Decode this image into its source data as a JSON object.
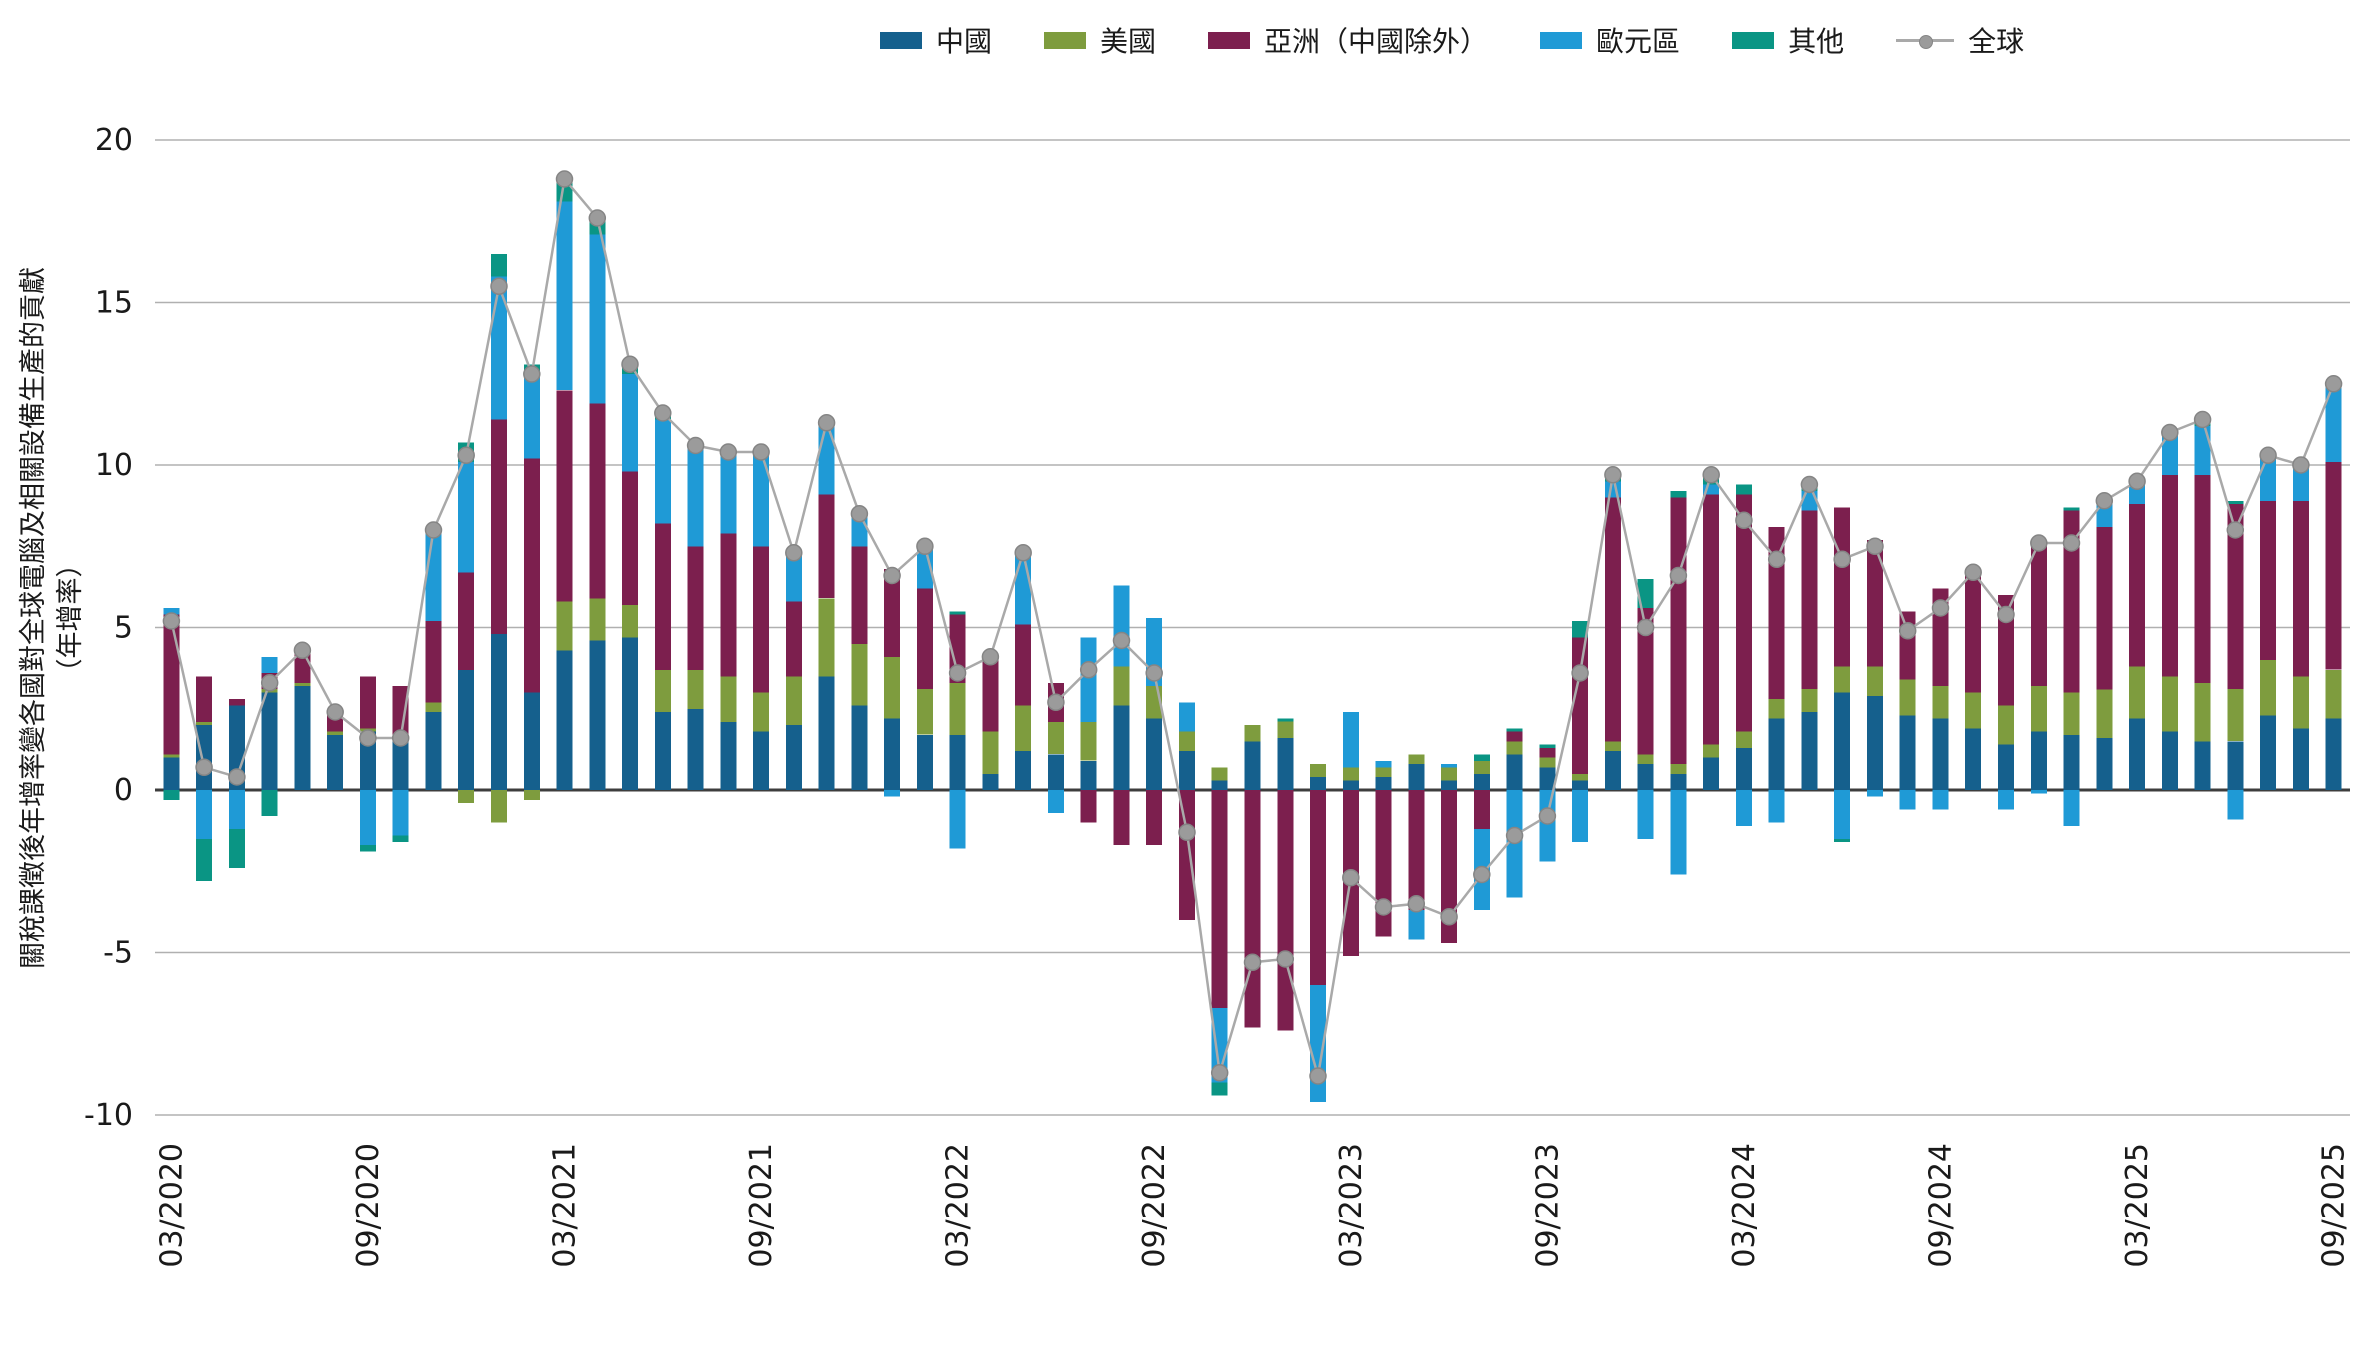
{
  "legend": {
    "items": [
      {
        "label": "中國",
        "color": "#15608d",
        "type": "box"
      },
      {
        "label": "美國",
        "color": "#7e9c3e",
        "type": "box"
      },
      {
        "label": "亞洲（中國除外）",
        "color": "#7c1f4e",
        "type": "box"
      },
      {
        "label": "歐元區",
        "color": "#1f9ad6",
        "type": "box"
      },
      {
        "label": "其他",
        "color": "#0a9584",
        "type": "box"
      },
      {
        "label": "全球",
        "color": "#a9a9a9",
        "type": "line"
      }
    ]
  },
  "y_axis": {
    "title_line1": "關稅課徵後年增率變各國對全球電腦及相關設備生產的貢獻",
    "title_line2": "（年增率）",
    "ticks": [
      20,
      15,
      10,
      5,
      0,
      -5,
      -10
    ]
  },
  "x_axis": {
    "tick_labels": [
      "03/2020",
      "09/2020",
      "03/2021",
      "09/2021",
      "03/2022",
      "09/2022",
      "03/2023",
      "09/2023",
      "03/2024",
      "09/2024",
      "03/2025",
      "09/2025"
    ],
    "tick_every": 6
  },
  "chart_data": {
    "type": "bar",
    "stacked": true,
    "title": "",
    "xlabel": "",
    "ylabel": "關稅課徵後年增率變各國對全球電腦及相關設備生產的貢獻（年增率）",
    "ylim": [
      -10,
      20
    ],
    "grid": true,
    "legend_position": "top",
    "categories": [
      "03/2020",
      "04/2020",
      "05/2020",
      "06/2020",
      "07/2020",
      "08/2020",
      "09/2020",
      "10/2020",
      "11/2020",
      "12/2020",
      "01/2021",
      "02/2021",
      "03/2021",
      "04/2021",
      "05/2021",
      "06/2021",
      "07/2021",
      "08/2021",
      "09/2021",
      "10/2021",
      "11/2021",
      "12/2021",
      "01/2022",
      "02/2022",
      "03/2022",
      "04/2022",
      "05/2022",
      "06/2022",
      "07/2022",
      "08/2022",
      "09/2022",
      "10/2022",
      "11/2022",
      "12/2022",
      "01/2023",
      "02/2023",
      "03/2023",
      "04/2023",
      "05/2023",
      "06/2023",
      "07/2023",
      "08/2023",
      "09/2023",
      "10/2023",
      "11/2023",
      "12/2023",
      "01/2024",
      "02/2024",
      "03/2024",
      "04/2024",
      "05/2024",
      "06/2024",
      "07/2024",
      "08/2024",
      "09/2024",
      "10/2024",
      "11/2024",
      "12/2024",
      "01/2025",
      "02/2025",
      "03/2025",
      "04/2025",
      "05/2025",
      "06/2025",
      "07/2025",
      "08/2025",
      "09/2025"
    ],
    "series": [
      {
        "name": "中國",
        "color": "#15608d",
        "values": [
          1.0,
          2.0,
          2.6,
          3.0,
          3.2,
          1.7,
          1.8,
          1.6,
          2.4,
          3.7,
          4.8,
          3.0,
          4.3,
          4.6,
          4.7,
          2.4,
          2.5,
          2.1,
          1.8,
          2.0,
          3.5,
          2.6,
          2.2,
          1.7,
          1.7,
          0.5,
          1.2,
          1.1,
          0.9,
          2.6,
          2.2,
          1.2,
          0.3,
          1.5,
          1.6,
          0.4,
          0.3,
          0.4,
          0.8,
          0.3,
          0.5,
          1.1,
          0.7,
          0.3,
          1.2,
          0.8,
          0.5,
          1.0,
          1.3,
          2.2,
          2.4,
          3.0,
          2.9,
          2.3,
          2.2,
          1.9,
          1.4,
          1.8,
          1.7,
          1.6,
          2.2,
          1.8,
          1.5,
          1.5,
          2.3,
          1.9,
          2.2
        ]
      },
      {
        "name": "美國",
        "color": "#7e9c3e",
        "values": [
          0.1,
          0.1,
          0.0,
          0.1,
          0.1,
          0.1,
          0.1,
          0.1,
          0.3,
          -0.4,
          -1.0,
          -0.3,
          1.5,
          1.3,
          1.0,
          1.3,
          1.2,
          1.4,
          1.2,
          1.5,
          2.4,
          1.9,
          1.9,
          1.4,
          1.6,
          1.3,
          1.4,
          1.0,
          1.2,
          1.2,
          1.0,
          0.6,
          0.4,
          0.5,
          0.5,
          0.4,
          0.4,
          0.3,
          0.3,
          0.4,
          0.4,
          0.4,
          0.3,
          0.2,
          0.3,
          0.3,
          0.3,
          0.4,
          0.5,
          0.6,
          0.7,
          0.8,
          0.9,
          1.1,
          1.0,
          1.1,
          1.2,
          1.4,
          1.3,
          1.5,
          1.6,
          1.7,
          1.8,
          1.6,
          1.7,
          1.6,
          1.5
        ]
      },
      {
        "name": "亞洲（中國除外）",
        "color": "#7c1f4e",
        "values": [
          4.3,
          1.4,
          0.2,
          0.5,
          1.0,
          0.6,
          1.6,
          1.5,
          2.5,
          3.0,
          6.6,
          7.2,
          6.5,
          6.0,
          4.1,
          4.5,
          3.8,
          4.4,
          4.5,
          2.3,
          3.2,
          3.0,
          2.7,
          3.1,
          2.1,
          2.3,
          2.5,
          1.2,
          -1.0,
          -1.7,
          -1.7,
          -4.0,
          -6.7,
          -7.3,
          -7.4,
          -6.0,
          -5.1,
          -4.5,
          -3.7,
          -4.7,
          -1.2,
          0.3,
          0.3,
          4.2,
          7.5,
          4.5,
          8.2,
          7.7,
          7.3,
          5.3,
          5.5,
          4.9,
          3.9,
          2.1,
          3.0,
          3.6,
          3.4,
          4.4,
          5.6,
          5.0,
          5.0,
          6.2,
          6.4,
          5.7,
          4.9,
          5.4,
          6.4
        ]
      },
      {
        "name": "歐元區",
        "color": "#1f9ad6",
        "values": [
          0.2,
          -1.5,
          -1.2,
          0.5,
          0.0,
          0.0,
          -1.7,
          -1.4,
          2.7,
          3.4,
          4.4,
          2.6,
          5.8,
          5.2,
          3.0,
          3.2,
          3.0,
          2.4,
          2.8,
          1.4,
          2.2,
          1.1,
          -0.2,
          1.4,
          -1.8,
          0.0,
          2.2,
          -0.7,
          2.6,
          2.5,
          2.1,
          0.9,
          -2.3,
          0.0,
          0.0,
          -3.6,
          1.7,
          0.2,
          -0.9,
          0.1,
          -2.5,
          -3.3,
          -2.2,
          -1.6,
          0.5,
          -1.5,
          -2.6,
          0.3,
          -1.1,
          -1.0,
          0.6,
          -1.5,
          -0.2,
          -0.6,
          -0.6,
          0.0,
          -0.6,
          -0.1,
          -1.1,
          0.7,
          0.6,
          1.2,
          1.5,
          -0.9,
          1.3,
          1.0,
          2.3
        ]
      },
      {
        "name": "其他",
        "color": "#0a9584",
        "values": [
          -0.3,
          -1.3,
          -1.2,
          -0.8,
          0.0,
          0.0,
          -0.2,
          -0.2,
          0.1,
          0.6,
          0.7,
          0.3,
          0.7,
          0.5,
          0.3,
          0.2,
          0.1,
          0.1,
          0.1,
          0.1,
          0.1,
          0.0,
          0.0,
          0.0,
          0.1,
          0.0,
          0.1,
          0.0,
          0.0,
          0.0,
          0.0,
          0.0,
          -0.4,
          0.0,
          0.1,
          0.0,
          0.0,
          0.0,
          0.0,
          0.0,
          0.2,
          0.1,
          0.1,
          0.5,
          0.2,
          0.9,
          0.2,
          0.3,
          0.3,
          0.0,
          0.2,
          -0.1,
          0.0,
          0.0,
          0.0,
          0.1,
          0.0,
          0.1,
          0.1,
          0.1,
          0.1,
          0.1,
          0.2,
          0.1,
          0.1,
          0.1,
          0.1
        ]
      }
    ],
    "line_series": {
      "name": "全球",
      "color": "#a9a9a9",
      "marker_color": "#9b9b9b",
      "values": [
        5.2,
        0.7,
        0.4,
        3.3,
        4.3,
        2.4,
        1.6,
        1.6,
        8.0,
        10.3,
        15.5,
        12.8,
        18.8,
        17.6,
        13.1,
        11.6,
        10.6,
        10.4,
        10.4,
        7.3,
        11.3,
        8.5,
        6.6,
        7.5,
        3.6,
        4.1,
        7.3,
        2.7,
        3.7,
        4.6,
        3.6,
        -1.3,
        -8.7,
        -5.3,
        -5.2,
        -8.8,
        -2.7,
        -3.6,
        -3.5,
        -3.9,
        -2.6,
        -1.4,
        -0.8,
        3.6,
        9.7,
        5.0,
        6.6,
        9.7,
        8.3,
        7.1,
        9.4,
        7.1,
        7.5,
        4.9,
        5.6,
        6.7,
        5.4,
        7.6,
        7.6,
        8.9,
        9.5,
        11.0,
        11.4,
        8.0,
        10.3,
        10.0,
        12.5
      ]
    }
  }
}
